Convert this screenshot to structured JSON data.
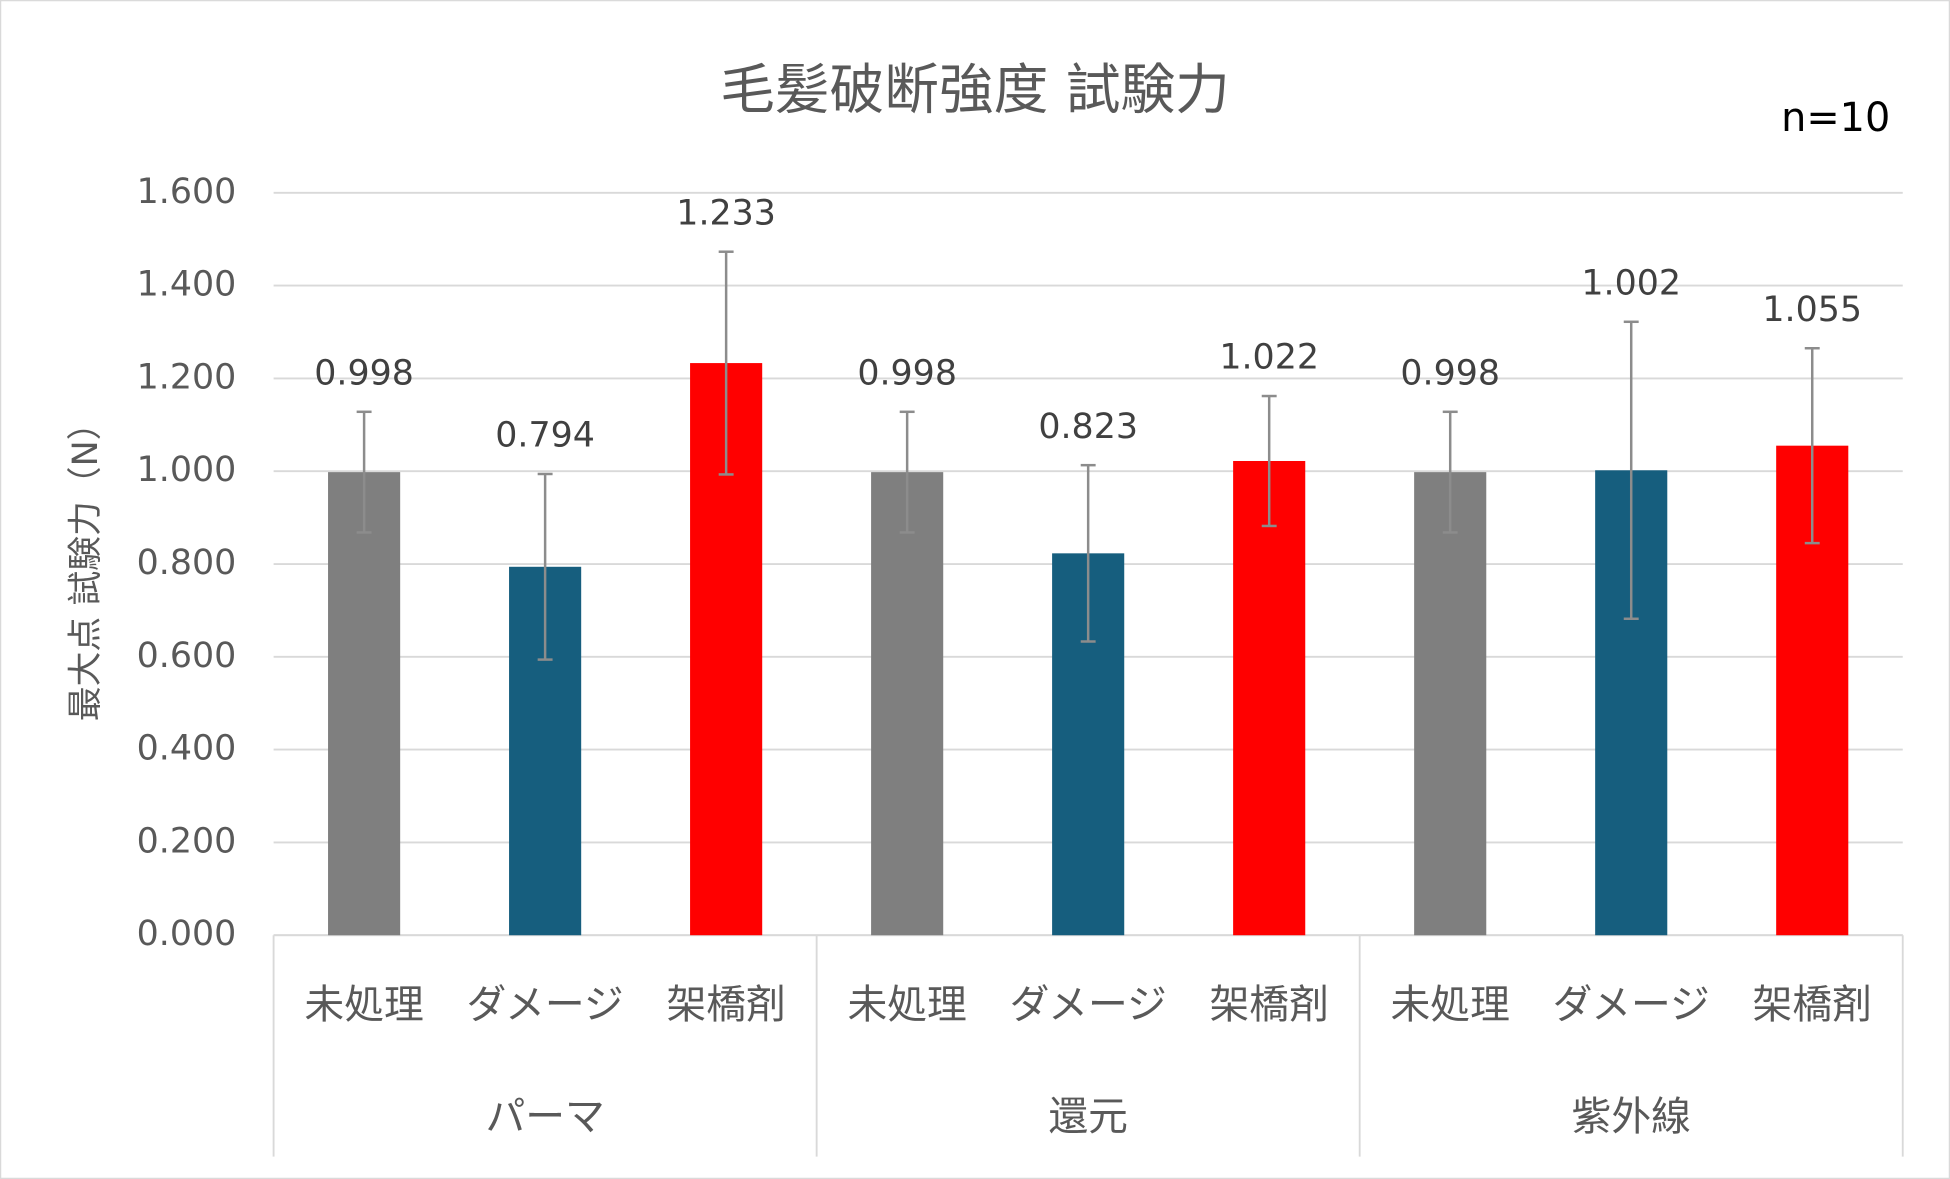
{
  "chart_data": {
    "type": "bar",
    "title": "毛髪破断強度 試験力",
    "annotation": "n=10",
    "y_label": "最大点 試験力（N）",
    "categories": [
      "未処理",
      "ダメージ",
      "架橋剤",
      "未処理",
      "ダメージ",
      "架橋剤",
      "未処理",
      "ダメージ",
      "架橋剤"
    ],
    "groups": [
      "パーマ",
      "還元",
      "紫外線"
    ],
    "values": [
      0.998,
      0.794,
      1.233,
      0.998,
      0.823,
      1.022,
      0.998,
      1.002,
      1.055
    ],
    "errors": [
      0.13,
      0.2,
      0.24,
      0.13,
      0.19,
      0.14,
      0.13,
      0.32,
      0.21
    ],
    "colors": [
      "#7f7f7f",
      "#165e7e",
      "#ff0000",
      "#7f7f7f",
      "#165e7e",
      "#ff0000",
      "#7f7f7f",
      "#165e7e",
      "#ff0000"
    ],
    "ylim": [
      0,
      1.6
    ],
    "yticks": [
      {
        "value": 0,
        "label": "0.000"
      },
      {
        "value": 0.2,
        "label": "0.200"
      },
      {
        "value": 0.4,
        "label": "0.400"
      },
      {
        "value": 0.6,
        "label": "0.600"
      },
      {
        "value": 0.8,
        "label": "0.800"
      },
      {
        "value": 1,
        "label": "1.000"
      },
      {
        "value": 1.2,
        "label": "1.200"
      },
      {
        "value": 1.4,
        "label": "1.400"
      },
      {
        "value": 1.6,
        "label": "1.600"
      }
    ],
    "grid": true
  }
}
